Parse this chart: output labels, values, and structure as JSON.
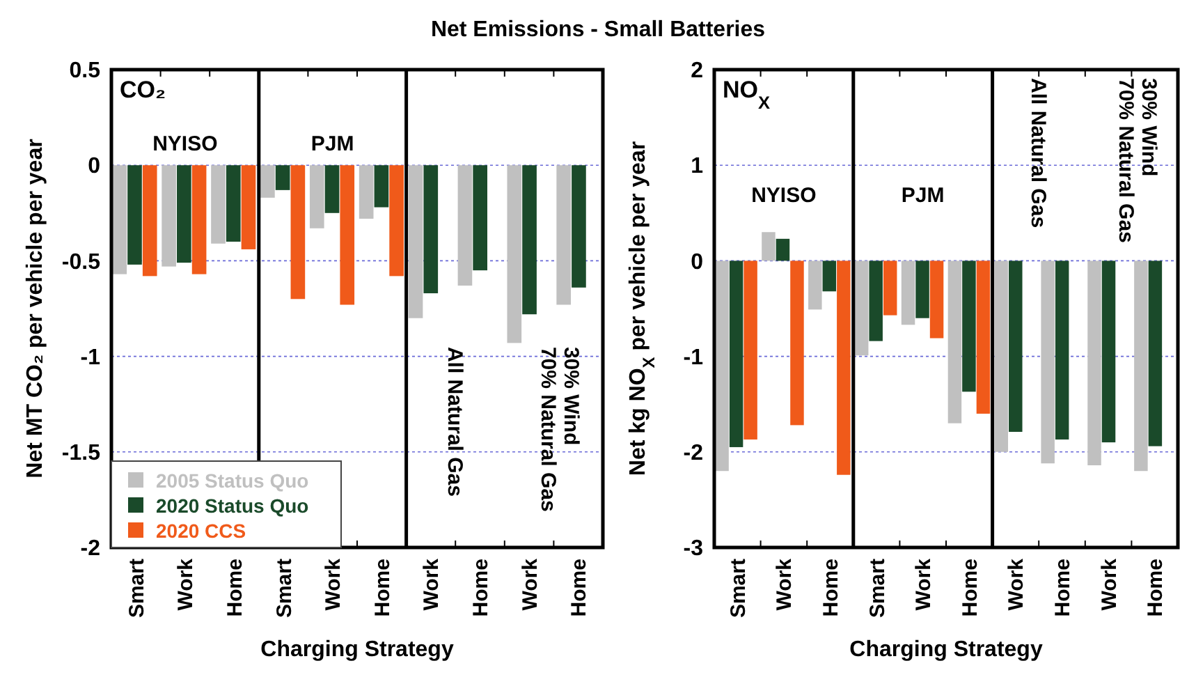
{
  "chart_data": [
    {
      "type": "bar",
      "title": "Net Emissions - Small Batteries",
      "xlabel": "Charging Strategy",
      "ylabel": "Net MT CO₂ per vehicle per year",
      "categories": [
        "Smart",
        "Work",
        "Home",
        "Smart",
        "Work",
        "Home",
        "Work",
        "Home",
        "Work",
        "Home"
      ],
      "series": [
        {
          "name": "2005 Status Quo",
          "color": "#c0c0c0",
          "values": [
            -0.57,
            -0.53,
            -0.41,
            -0.17,
            -0.33,
            -0.28,
            -0.8,
            -0.63,
            -0.93,
            -0.73
          ]
        },
        {
          "name": "2020 Status Quo",
          "color": "#1a4a2a",
          "values": [
            -0.52,
            -0.51,
            -0.4,
            -0.13,
            -0.25,
            -0.22,
            -0.67,
            -0.55,
            -0.78,
            -0.64
          ]
        },
        {
          "name": "2020 CCS",
          "color": "#f05a1a",
          "values": [
            -0.58,
            -0.57,
            -0.44,
            -0.7,
            -0.73,
            -0.58,
            null,
            null,
            null,
            null
          ]
        }
      ],
      "ylim": [
        -2,
        0.5
      ],
      "yticks": [
        0.5,
        0,
        -0.5,
        -1,
        -1.5,
        -2
      ],
      "grid": "y",
      "legend": "bottom left",
      "annotations": [
        "CO₂",
        "NYISO",
        "PJM",
        "All Natural Gas",
        "30% Wind\n70% Natural Gas"
      ]
    },
    {
      "type": "bar",
      "xlabel": "Charging Strategy",
      "ylabel": "Net kg NO$_{X}$ per vehicle per year",
      "categories": [
        "Smart",
        "Work",
        "Home",
        "Smart",
        "Work",
        "Home",
        "Work",
        "Home",
        "Work",
        "Home"
      ],
      "series": [
        {
          "color": "#c0c0c0",
          "values": [
            -2.2,
            0.3,
            -0.51,
            -0.99,
            -0.67,
            -1.7,
            -2.0,
            -2.12,
            -2.14,
            -2.2
          ]
        },
        {
          "color": "#1a4a2a",
          "values": [
            -1.95,
            0.23,
            -0.32,
            -0.84,
            -0.6,
            -1.37,
            -1.79,
            -1.87,
            -1.9,
            -1.94
          ]
        },
        {
          "color": "#f05a1a",
          "values": [
            -1.87,
            -1.72,
            -2.24,
            -0.57,
            -0.81,
            -1.6,
            null,
            null,
            null,
            null
          ]
        }
      ],
      "ylim": [
        -3,
        2
      ],
      "yticks": [
        2,
        1,
        0,
        -1,
        -2,
        -3
      ],
      "grid": "y",
      "legend": false,
      "annotations": [
        "NO$_{X}$",
        "NYISO",
        "PJM",
        "All Natural Gas",
        "30% Wind\n70% Natural Gas"
      ]
    }
  ]
}
